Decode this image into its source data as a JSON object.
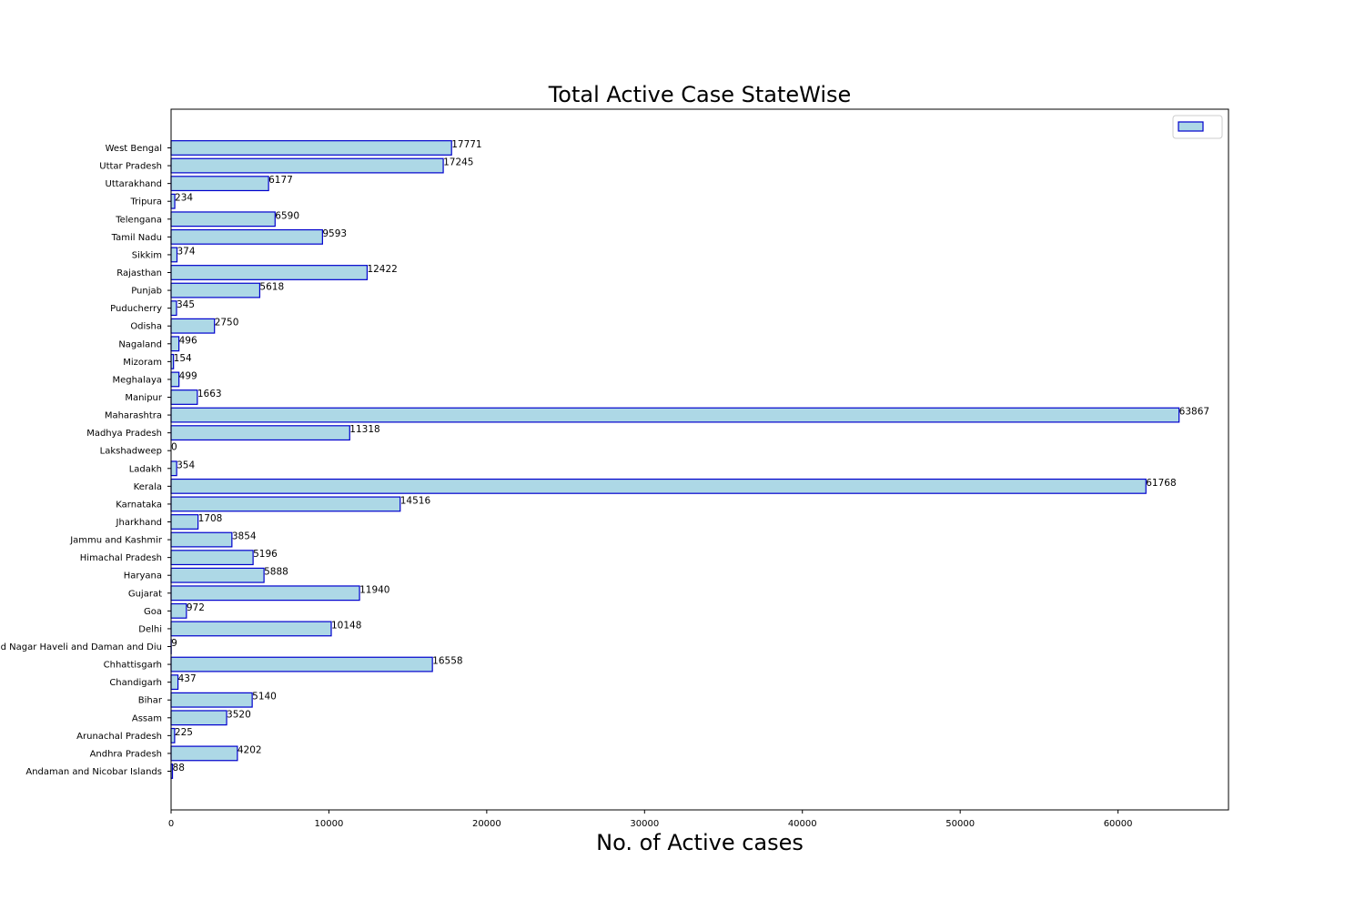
{
  "chart_data": {
    "type": "bar",
    "orientation": "horizontal",
    "title": "Total Active Case StateWise",
    "xlabel": "No. of Active cases",
    "ylabel": "",
    "xlim": [
      0,
      67000
    ],
    "x_ticks": [
      0,
      10000,
      20000,
      30000,
      40000,
      50000,
      60000
    ],
    "grid": false,
    "legend_position": "top-right",
    "categories": [
      "Andaman and Nicobar Islands",
      "Andhra Pradesh",
      "Arunachal Pradesh",
      "Assam",
      "Bihar",
      "Chandigarh",
      "Chhattisgarh",
      "Dadra and Nagar Haveli and Daman and Diu",
      "Delhi",
      "Goa",
      "Gujarat",
      "Haryana",
      "Himachal Pradesh",
      "Jammu and Kashmir",
      "Jharkhand",
      "Karnataka",
      "Kerala",
      "Ladakh",
      "Lakshadweep",
      "Madhya Pradesh",
      "Maharashtra",
      "Manipur",
      "Meghalaya",
      "Mizoram",
      "Nagaland",
      "Odisha",
      "Puducherry",
      "Punjab",
      "Rajasthan",
      "Sikkim",
      "Tamil Nadu",
      "Telengana",
      "Tripura",
      "Uttarakhand",
      "Uttar Pradesh",
      "West Bengal"
    ],
    "values": [
      88,
      4202,
      225,
      3520,
      5140,
      437,
      16558,
      9,
      10148,
      972,
      11940,
      5888,
      5196,
      3854,
      1708,
      14516,
      61768,
      354,
      0,
      11318,
      63867,
      1663,
      499,
      154,
      496,
      2750,
      345,
      5618,
      12422,
      374,
      9593,
      6590,
      234,
      6177,
      17245,
      17771
    ],
    "colors": {
      "bar_fill": "#add8e6",
      "bar_edge": "#0000cd"
    }
  }
}
